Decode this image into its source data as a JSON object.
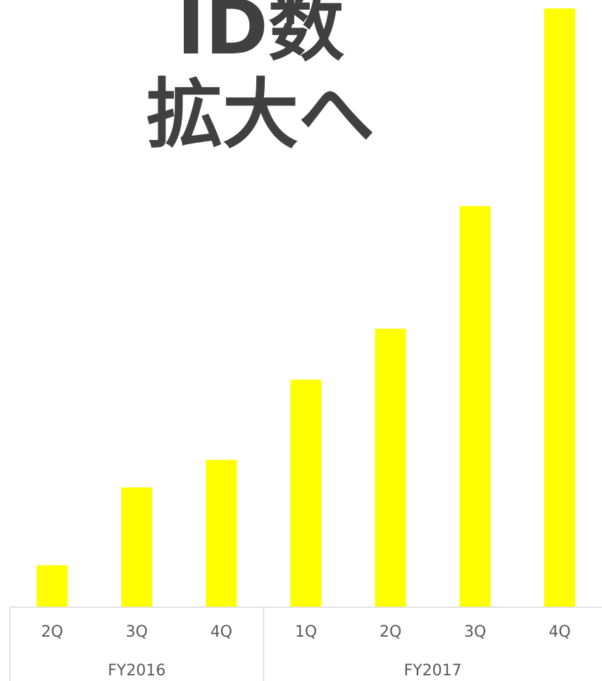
{
  "headline": {
    "line1": "ID数",
    "line2": "拡大へ"
  },
  "chart_data": {
    "type": "bar",
    "groups": [
      {
        "label": "FY2016",
        "categories": [
          "2Q",
          "3Q",
          "4Q"
        ]
      },
      {
        "label": "FY2017",
        "categories": [
          "1Q",
          "2Q",
          "3Q",
          "4Q"
        ]
      }
    ],
    "categories": [
      "2Q",
      "3Q",
      "4Q",
      "1Q",
      "2Q",
      "3Q",
      "4Q"
    ],
    "values": [
      7,
      20,
      24.6,
      38,
      46.5,
      67,
      100
    ],
    "ylim": [
      0,
      100
    ],
    "bar_color": "#ffff00",
    "axis_color": "#d9d9d9",
    "text_color": "#595959",
    "headline_color": "#404040"
  }
}
